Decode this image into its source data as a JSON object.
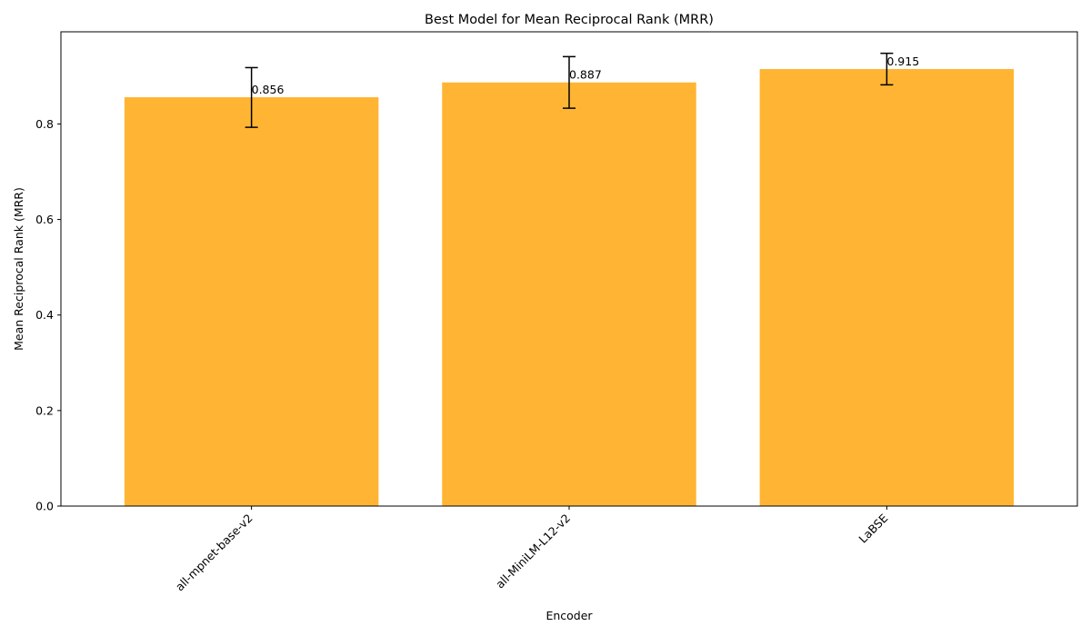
{
  "chart_data": {
    "type": "bar",
    "title": "Best Model for Mean Reciprocal Rank (MRR)",
    "xlabel": "Encoder",
    "ylabel": "Mean Reciprocal Rank (MRR)",
    "categories": [
      "all-mpnet-base-v2",
      "all-MiniLM-L12-v2",
      "LaBSE"
    ],
    "values": [
      0.856,
      0.887,
      0.915
    ],
    "value_labels": [
      "0.856",
      "0.887",
      "0.915"
    ],
    "error_low": [
      0.793,
      0.833,
      0.882
    ],
    "error_high": [
      0.918,
      0.941,
      0.948
    ],
    "ylim": [
      0,
      0.993
    ],
    "yticks": [
      0.0,
      0.2,
      0.4,
      0.6,
      0.8
    ],
    "ytick_labels": [
      "0.0",
      "0.2",
      "0.4",
      "0.6",
      "0.8"
    ],
    "grid": false,
    "colors": {
      "bar": "#ffb533",
      "axis": "#000000",
      "errorbar": "#000000"
    }
  }
}
